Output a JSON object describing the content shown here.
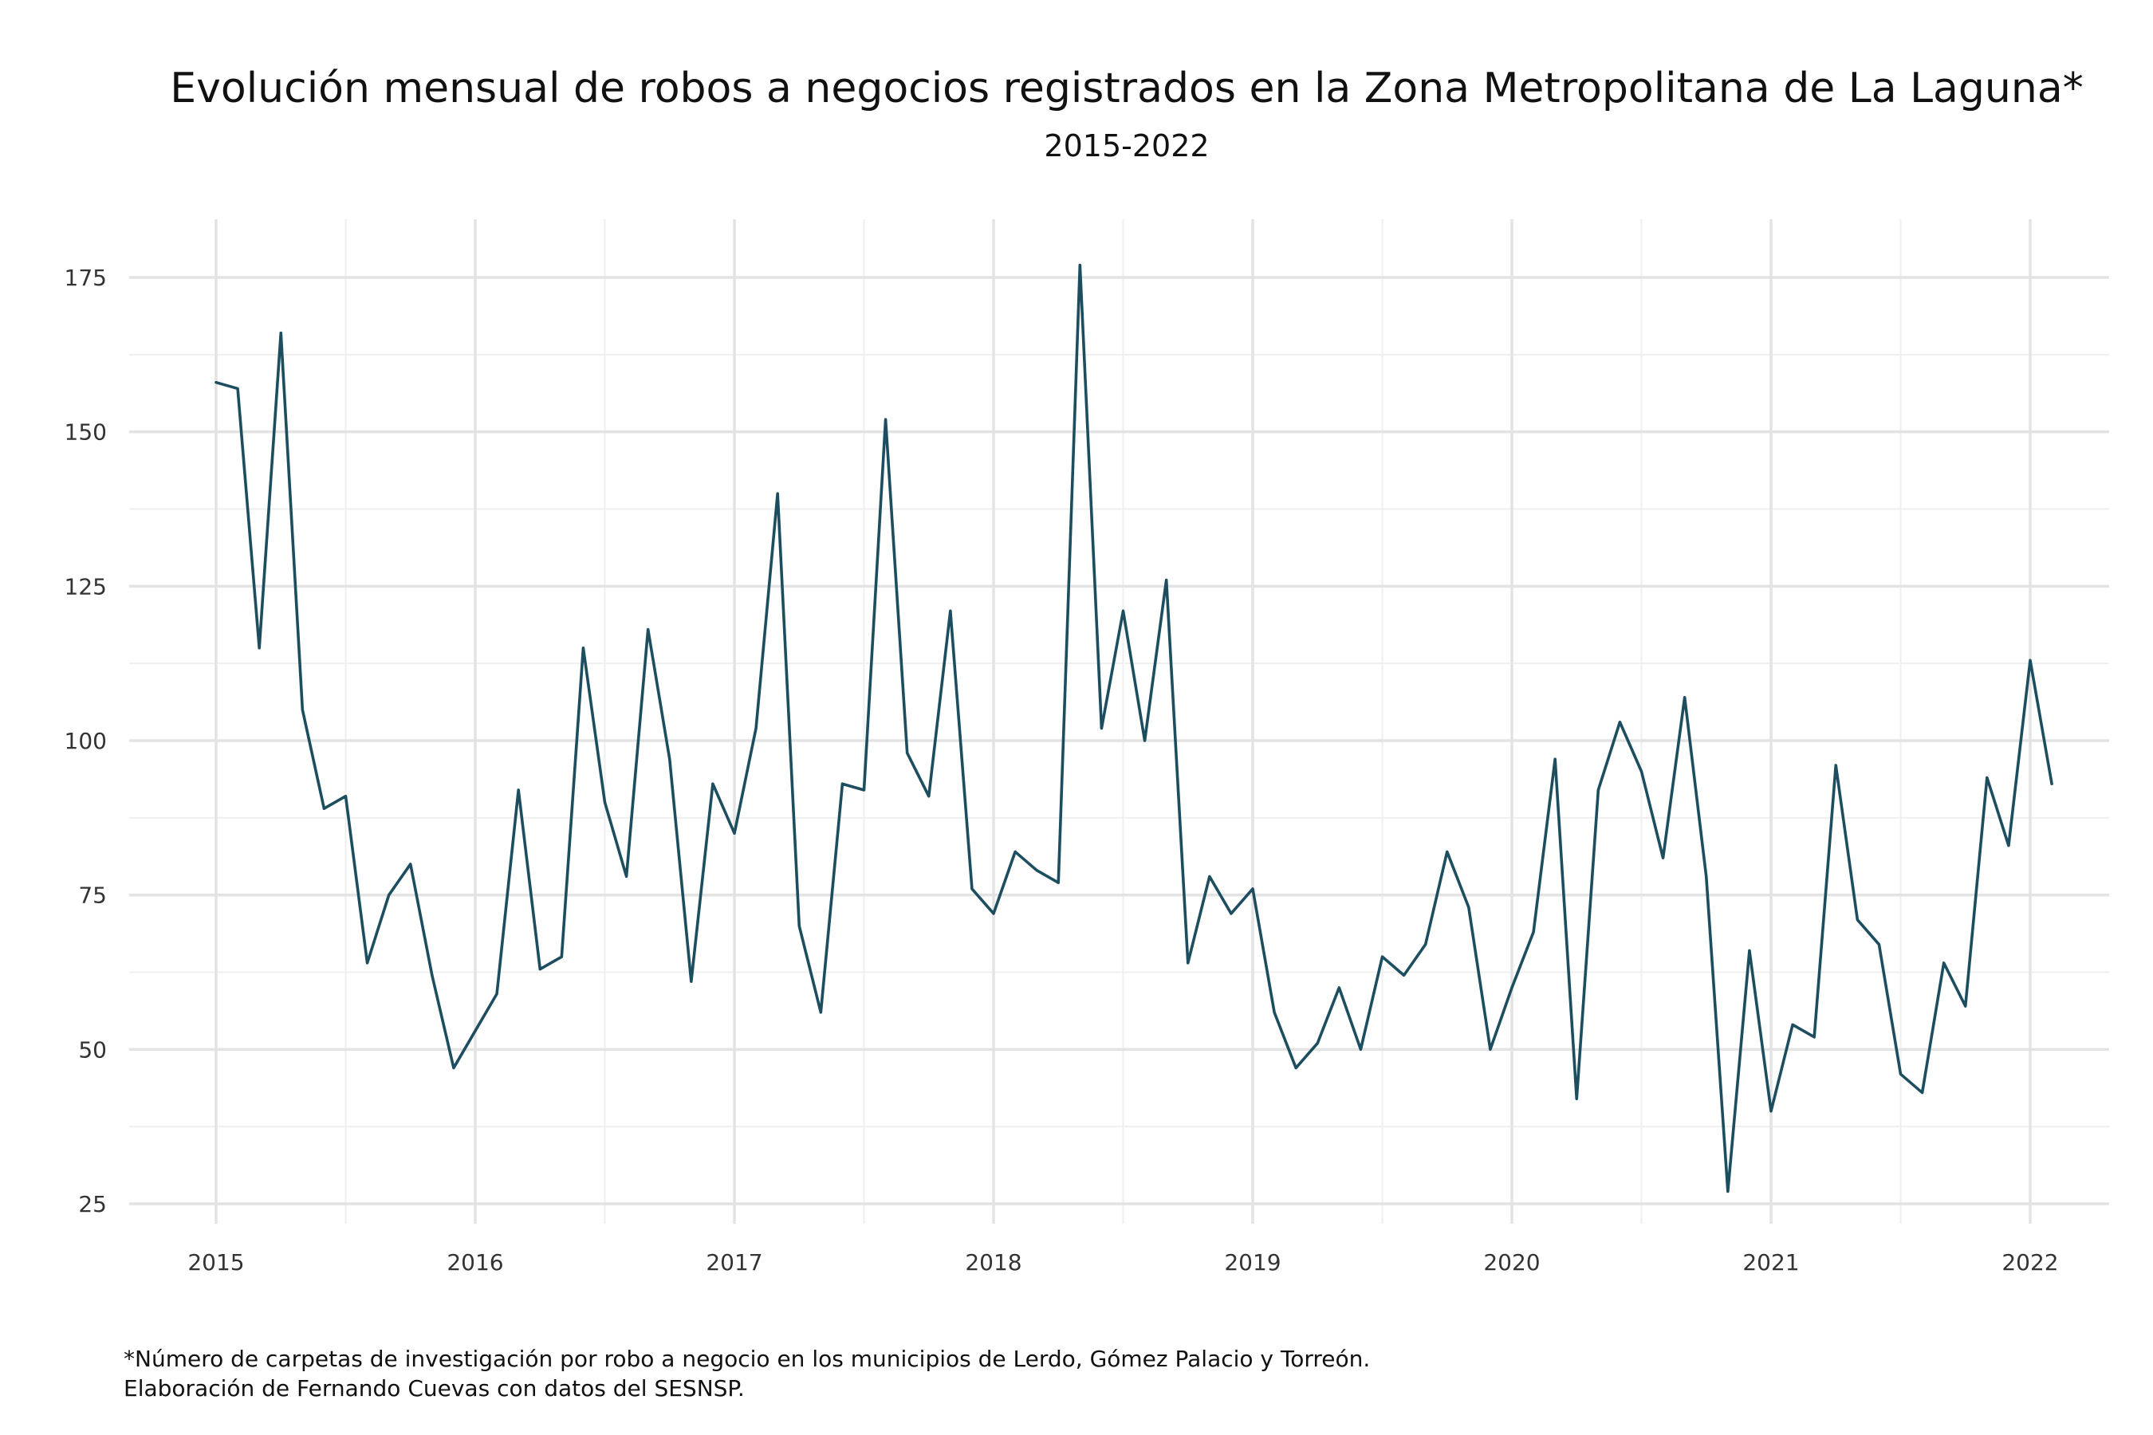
{
  "chart_data": {
    "type": "line",
    "title": "Evolución mensual de robos a negocios registrados en la Zona Metropolitana de La Laguna*",
    "subtitle": "2015-2022",
    "xlabel": "",
    "ylabel": "",
    "x_start": "2015-01",
    "xlim": [
      "2014-07",
      "2022-07"
    ],
    "ylim": [
      20,
      182
    ],
    "x_ticks": [
      "2015",
      "2016",
      "2017",
      "2018",
      "2019",
      "2020",
      "2021",
      "2022"
    ],
    "y_ticks": [
      25,
      50,
      75,
      100,
      125,
      150,
      175
    ],
    "y_tick_labels": [
      "25",
      "50",
      "75",
      "100",
      "125",
      "150",
      "175"
    ],
    "grid": true,
    "legend": "none",
    "line_color": "#1d4e5f",
    "series": [
      {
        "values": [
          158,
          157,
          115,
          166,
          105,
          89,
          91,
          64,
          75,
          80,
          62,
          47,
          53,
          59,
          92,
          63,
          65,
          115,
          90,
          78,
          118,
          97,
          61,
          93,
          85,
          102,
          140,
          70,
          56,
          93,
          92,
          152,
          98,
          91,
          121,
          76,
          72,
          82,
          79,
          77,
          177,
          102,
          121,
          100,
          126,
          64,
          78,
          72,
          76,
          56,
          47,
          51,
          60,
          50,
          65,
          62,
          67,
          82,
          73,
          50,
          60,
          69,
          97,
          42,
          92,
          103,
          95,
          81,
          107,
          78,
          27,
          66,
          40,
          54,
          52,
          96,
          71,
          67,
          46,
          43,
          64,
          57,
          94,
          83,
          113,
          93
        ]
      }
    ]
  },
  "caption": {
    "line1": "*Número de carpetas de investigación por robo a negocio en los municipios de Lerdo, Gómez Palacio y Torreón.",
    "line2": "Elaboración de Fernando Cuevas con datos del SESNSP."
  }
}
